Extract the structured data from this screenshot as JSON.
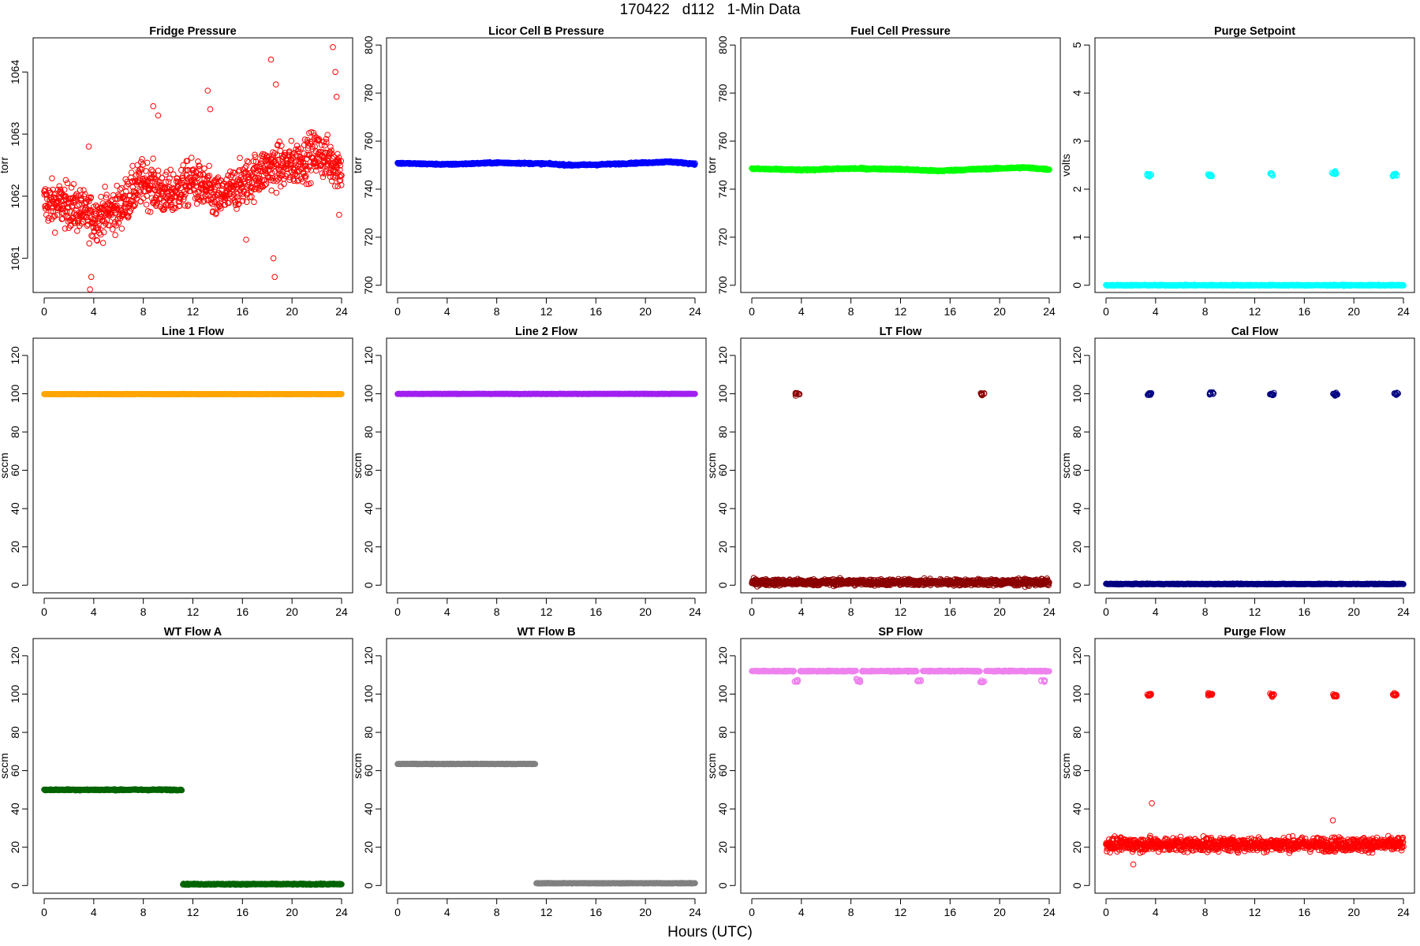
{
  "header": {
    "title": "170422   d112   1-Min Data"
  },
  "footer": {
    "xlabel": "Hours (UTC)"
  },
  "chart_data": [
    {
      "type": "scatter",
      "title": "Fridge Pressure",
      "ylabel": "torr",
      "color": "#ff0000",
      "marker": "open-circle",
      "xlim": [
        0,
        24
      ],
      "ylim": [
        1060.45,
        1064.55
      ],
      "xticks": [
        0,
        4,
        8,
        12,
        16,
        20,
        24
      ],
      "yticks": [
        1061,
        1062,
        1063,
        1064
      ],
      "series": [
        {
          "baseline": [
            [
              0,
              1061.9
            ],
            [
              2,
              1061.85
            ],
            [
              4,
              1061.65
            ],
            [
              6,
              1061.8
            ],
            [
              8,
              1062.25
            ],
            [
              10,
              1062.0
            ],
            [
              12,
              1062.25
            ],
            [
              14,
              1061.95
            ],
            [
              16,
              1062.2
            ],
            [
              18,
              1062.45
            ],
            [
              20,
              1062.5
            ],
            [
              22,
              1062.7
            ],
            [
              24,
              1062.45
            ]
          ],
          "scatter": 0.35,
          "excursions": [
            {
              "x": 3.7,
              "y": 1060.5
            },
            {
              "x": 3.8,
              "y": 1060.7
            },
            {
              "x": 3.6,
              "y": 1062.8
            },
            {
              "x": 8.8,
              "y": 1063.45
            },
            {
              "x": 9.2,
              "y": 1063.3
            },
            {
              "x": 13.2,
              "y": 1063.7
            },
            {
              "x": 13.4,
              "y": 1063.4
            },
            {
              "x": 16.3,
              "y": 1061.3
            },
            {
              "x": 18.3,
              "y": 1064.2
            },
            {
              "x": 18.7,
              "y": 1063.8
            },
            {
              "x": 18.6,
              "y": 1060.7
            },
            {
              "x": 18.5,
              "y": 1061.0
            },
            {
              "x": 23.3,
              "y": 1064.4
            },
            {
              "x": 23.5,
              "y": 1064.0
            },
            {
              "x": 23.6,
              "y": 1063.6
            },
            {
              "x": 23.8,
              "y": 1061.7
            }
          ]
        }
      ]
    },
    {
      "type": "scatter",
      "title": "Licor Cell B Pressure",
      "ylabel": "torr",
      "color": "#0000ff",
      "marker": "open-circle",
      "xlim": [
        0,
        24
      ],
      "ylim": [
        697,
        803
      ],
      "xticks": [
        0,
        4,
        8,
        12,
        16,
        20,
        24
      ],
      "yticks": [
        700,
        720,
        740,
        760,
        780,
        800
      ],
      "series": [
        {
          "baseline": [
            [
              0,
              750.8
            ],
            [
              4,
              750.3
            ],
            [
              8,
              751.0
            ],
            [
              12,
              750.6
            ],
            [
              14,
              750.0
            ],
            [
              16,
              750.2
            ],
            [
              20,
              751.0
            ],
            [
              22,
              751.4
            ],
            [
              24,
              750.5
            ]
          ],
          "scatter": 0.3,
          "excursions": []
        }
      ]
    },
    {
      "type": "scatter",
      "title": "Fuel Cell Pressure",
      "ylabel": "torr",
      "color": "#00ff00",
      "marker": "open-circle",
      "xlim": [
        0,
        24
      ],
      "ylim": [
        697,
        803
      ],
      "xticks": [
        0,
        4,
        8,
        12,
        16,
        20,
        24
      ],
      "yticks": [
        700,
        720,
        740,
        760,
        780,
        800
      ],
      "series": [
        {
          "baseline": [
            [
              0,
              748.5
            ],
            [
              4,
              748.0
            ],
            [
              8,
              748.6
            ],
            [
              12,
              748.3
            ],
            [
              15,
              747.6
            ],
            [
              18,
              748.3
            ],
            [
              22,
              749.0
            ],
            [
              24,
              748.2
            ]
          ],
          "scatter": 0.3,
          "excursions": []
        }
      ]
    },
    {
      "type": "scatter",
      "title": "Purge Setpoint",
      "ylabel": "volts",
      "color": "#00ffff",
      "marker": "open-circle",
      "xlim": [
        0,
        24
      ],
      "ylim": [
        -0.15,
        5.15
      ],
      "xticks": [
        0,
        4,
        8,
        12,
        16,
        20,
        24
      ],
      "yticks": [
        0,
        1,
        2,
        3,
        4,
        5
      ],
      "series": [
        {
          "baseline": [
            [
              0,
              0
            ],
            [
              24,
              0
            ]
          ],
          "scatter": 0.01,
          "clusters": [
            {
              "x": 3.5,
              "y": 2.3
            },
            {
              "x": 8.4,
              "y": 2.28
            },
            {
              "x": 13.3,
              "y": 2.32
            },
            {
              "x": 18.4,
              "y": 2.33
            },
            {
              "x": 23.3,
              "y": 2.3
            }
          ]
        }
      ]
    },
    {
      "type": "scatter",
      "title": "Line 1 Flow",
      "ylabel": "sccm",
      "color": "#ffa500",
      "marker": "open-circle",
      "xlim": [
        0,
        24
      ],
      "ylim": [
        -4,
        129
      ],
      "xticks": [
        0,
        4,
        8,
        12,
        16,
        20,
        24
      ],
      "yticks": [
        0,
        20,
        40,
        60,
        80,
        100,
        120
      ],
      "series": [
        {
          "baseline": [
            [
              0,
              99.8
            ],
            [
              24,
              99.8
            ]
          ],
          "scatter": 0.1,
          "excursions": []
        }
      ]
    },
    {
      "type": "scatter",
      "title": "Line 2 Flow",
      "ylabel": "sccm",
      "color": "#a020f0",
      "marker": "open-circle",
      "xlim": [
        0,
        24
      ],
      "ylim": [
        -4,
        129
      ],
      "xticks": [
        0,
        4,
        8,
        12,
        16,
        20,
        24
      ],
      "yticks": [
        0,
        20,
        40,
        60,
        80,
        100,
        120
      ],
      "series": [
        {
          "baseline": [
            [
              0,
              99.9
            ],
            [
              24,
              99.9
            ]
          ],
          "scatter": 0.1,
          "excursions": []
        }
      ]
    },
    {
      "type": "scatter",
      "title": "LT Flow",
      "ylabel": "sccm",
      "color": "#8b0000",
      "marker": "open-circle",
      "xlim": [
        0,
        24
      ],
      "ylim": [
        -4,
        129
      ],
      "xticks": [
        0,
        4,
        8,
        12,
        16,
        20,
        24
      ],
      "yticks": [
        0,
        20,
        40,
        60,
        80,
        100,
        120
      ],
      "series": [
        {
          "baseline": [
            [
              0,
              1.5
            ],
            [
              24,
              1.5
            ]
          ],
          "scatter": 1.6,
          "clusters": [
            {
              "x": 3.7,
              "y": 99.8
            },
            {
              "x": 18.6,
              "y": 99.8
            }
          ]
        }
      ]
    },
    {
      "type": "scatter",
      "title": "Cal Flow",
      "ylabel": "sccm",
      "color": "#000080",
      "marker": "open-circle",
      "xlim": [
        0,
        24
      ],
      "ylim": [
        -4,
        129
      ],
      "xticks": [
        0,
        4,
        8,
        12,
        16,
        20,
        24
      ],
      "yticks": [
        0,
        20,
        40,
        60,
        80,
        100,
        120
      ],
      "series": [
        {
          "baseline": [
            [
              0,
              0.6
            ],
            [
              24,
              0.6
            ]
          ],
          "scatter": 0.2,
          "clusters": [
            {
              "x": 3.5,
              "y": 99.9
            },
            {
              "x": 8.5,
              "y": 99.9
            },
            {
              "x": 13.4,
              "y": 99.9
            },
            {
              "x": 18.5,
              "y": 99.9
            },
            {
              "x": 23.4,
              "y": 99.9
            }
          ]
        }
      ]
    },
    {
      "type": "scatter",
      "title": "WT Flow A",
      "ylabel": "sccm",
      "color": "#006400",
      "marker": "open-circle",
      "xlim": [
        0,
        24
      ],
      "ylim": [
        -4,
        129
      ],
      "xticks": [
        0,
        4,
        8,
        12,
        16,
        20,
        24
      ],
      "yticks": [
        0,
        20,
        40,
        60,
        80,
        100,
        120
      ],
      "series": [
        {
          "segments": [
            {
              "x0": 0,
              "x1": 11.1,
              "y": 50.0
            },
            {
              "x0": 11.2,
              "x1": 24,
              "y": 0.7
            }
          ],
          "scatter": 0.3,
          "excursions": []
        }
      ]
    },
    {
      "type": "scatter",
      "title": "WT Flow B",
      "ylabel": "sccm",
      "color": "#808080",
      "marker": "open-circle",
      "xlim": [
        0,
        24
      ],
      "ylim": [
        -4,
        129
      ],
      "xticks": [
        0,
        4,
        8,
        12,
        16,
        20,
        24
      ],
      "yticks": [
        0,
        20,
        40,
        60,
        80,
        100,
        120
      ],
      "series": [
        {
          "segments": [
            {
              "x0": 0,
              "x1": 11.1,
              "y": 63.5
            },
            {
              "x0": 11.2,
              "x1": 24,
              "y": 1.2
            }
          ],
          "scatter": 0.15,
          "excursions": []
        }
      ]
    },
    {
      "type": "scatter",
      "title": "SP Flow",
      "ylabel": "sccm",
      "color": "#ee82ee",
      "marker": "open-circle",
      "xlim": [
        0,
        24
      ],
      "ylim": [
        -4,
        129
      ],
      "xticks": [
        0,
        4,
        8,
        12,
        16,
        20,
        24
      ],
      "yticks": [
        0,
        20,
        40,
        60,
        80,
        100,
        120
      ],
      "series": [
        {
          "segments": [
            {
              "x0": 0,
              "x1": 3.4,
              "y": 112
            },
            {
              "x0": 3.9,
              "x1": 8.4,
              "y": 112
            },
            {
              "x0": 8.9,
              "x1": 13.3,
              "y": 112
            },
            {
              "x0": 13.8,
              "x1": 18.4,
              "y": 112
            },
            {
              "x0": 18.9,
              "x1": 24,
              "y": 112
            }
          ],
          "scatter": 0.25,
          "clusters": [
            {
              "x": 3.6,
              "y": 106.5
            },
            {
              "x": 8.6,
              "y": 107
            },
            {
              "x": 13.5,
              "y": 107
            },
            {
              "x": 18.6,
              "y": 106.5
            },
            {
              "x": 23.5,
              "y": 107
            }
          ]
        }
      ]
    },
    {
      "type": "scatter",
      "title": "Purge Flow",
      "ylabel": "sccm",
      "color": "#ff0000",
      "marker": "open-circle",
      "xlim": [
        0,
        24
      ],
      "ylim": [
        -4,
        129
      ],
      "xticks": [
        0,
        4,
        8,
        12,
        16,
        20,
        24
      ],
      "yticks": [
        0,
        20,
        40,
        60,
        80,
        100,
        120
      ],
      "series": [
        {
          "baseline": [
            [
              0,
              21.5
            ],
            [
              24,
              21.5
            ]
          ],
          "scatter": 3.5,
          "clusters": [
            {
              "x": 3.5,
              "y": 99.5
            },
            {
              "x": 8.4,
              "y": 99.7
            },
            {
              "x": 13.4,
              "y": 99.6
            },
            {
              "x": 18.5,
              "y": 99.4
            },
            {
              "x": 23.3,
              "y": 99.7
            }
          ],
          "excursions": [
            {
              "x": 3.7,
              "y": 43
            },
            {
              "x": 18.3,
              "y": 34
            },
            {
              "x": 2.2,
              "y": 11
            }
          ]
        }
      ]
    }
  ]
}
